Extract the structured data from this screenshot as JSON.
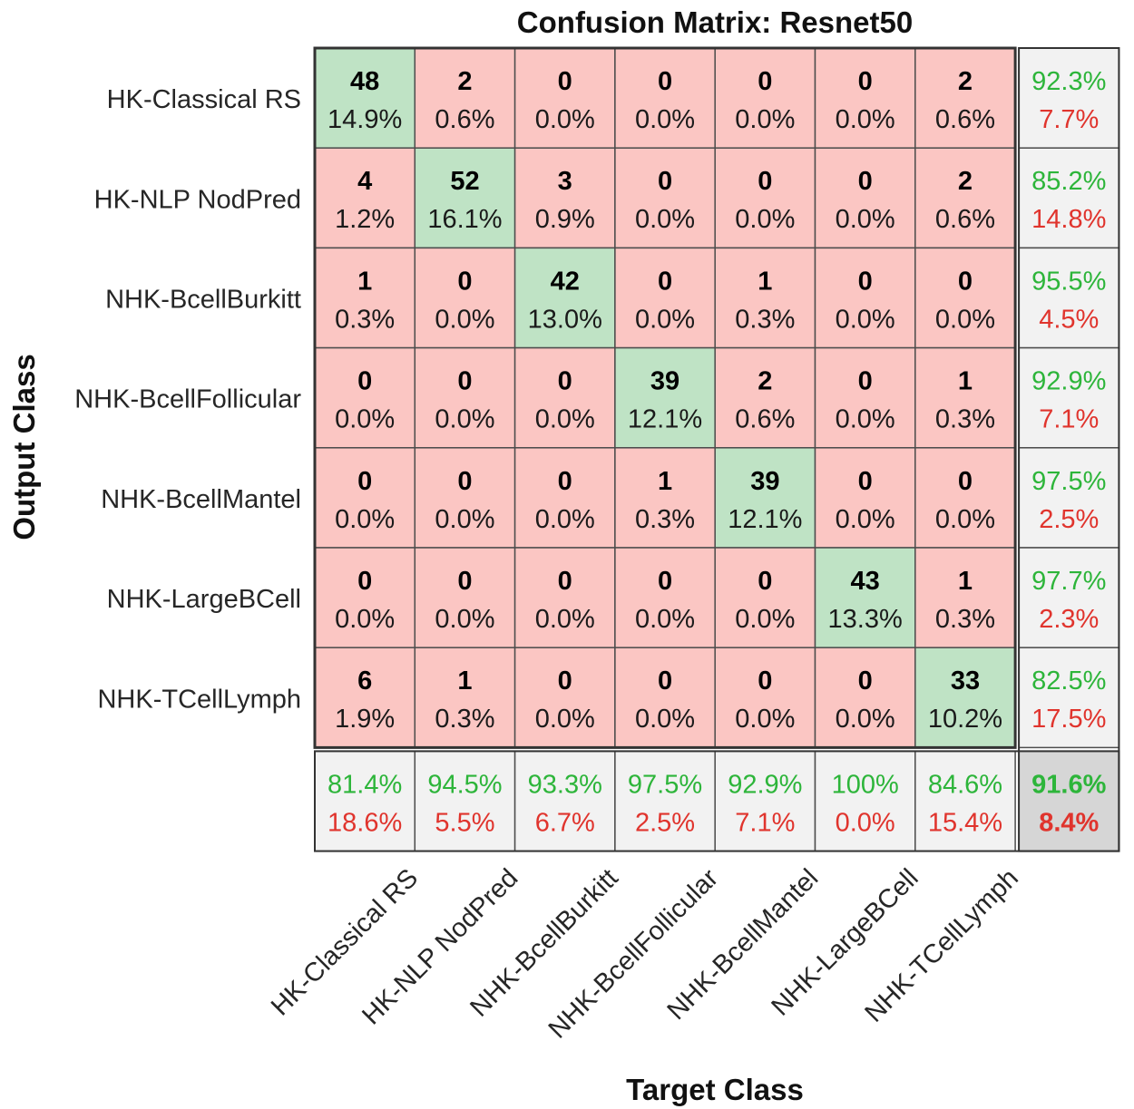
{
  "chart_data": {
    "type": "heatmap",
    "title": "Confusion Matrix: Resnet50",
    "xlabel": "Target Class",
    "ylabel": "Output Class",
    "classes": [
      "HK-Classical RS",
      "HK-NLP NodPred",
      "NHK-BcellBurkitt",
      "NHK-BcellFollicular",
      "NHK-BcellMantel",
      "NHK-LargeBCell",
      "NHK-TCellLymph"
    ],
    "counts": [
      [
        48,
        2,
        0,
        0,
        0,
        0,
        2
      ],
      [
        4,
        52,
        3,
        0,
        0,
        0,
        2
      ],
      [
        1,
        0,
        42,
        0,
        1,
        0,
        0
      ],
      [
        0,
        0,
        0,
        39,
        2,
        0,
        1
      ],
      [
        0,
        0,
        0,
        1,
        39,
        0,
        0
      ],
      [
        0,
        0,
        0,
        0,
        0,
        43,
        1
      ],
      [
        6,
        1,
        0,
        0,
        0,
        0,
        33
      ]
    ],
    "percents": [
      [
        "14.9%",
        "0.6%",
        "0.0%",
        "0.0%",
        "0.0%",
        "0.0%",
        "0.6%"
      ],
      [
        "1.2%",
        "16.1%",
        "0.9%",
        "0.0%",
        "0.0%",
        "0.0%",
        "0.6%"
      ],
      [
        "0.3%",
        "0.0%",
        "13.0%",
        "0.0%",
        "0.3%",
        "0.0%",
        "0.0%"
      ],
      [
        "0.0%",
        "0.0%",
        "0.0%",
        "12.1%",
        "0.6%",
        "0.0%",
        "0.3%"
      ],
      [
        "0.0%",
        "0.0%",
        "0.0%",
        "0.3%",
        "12.1%",
        "0.0%",
        "0.0%"
      ],
      [
        "0.0%",
        "0.0%",
        "0.0%",
        "0.0%",
        "0.0%",
        "13.3%",
        "0.3%"
      ],
      [
        "1.9%",
        "0.3%",
        "0.0%",
        "0.0%",
        "0.0%",
        "0.0%",
        "10.2%"
      ]
    ],
    "row_summary": [
      [
        "92.3%",
        "7.7%"
      ],
      [
        "85.2%",
        "14.8%"
      ],
      [
        "95.5%",
        "4.5%"
      ],
      [
        "92.9%",
        "7.1%"
      ],
      [
        "97.5%",
        "2.5%"
      ],
      [
        "97.7%",
        "2.3%"
      ],
      [
        "82.5%",
        "17.5%"
      ]
    ],
    "col_summary": [
      [
        "81.4%",
        "18.6%"
      ],
      [
        "94.5%",
        "5.5%"
      ],
      [
        "93.3%",
        "6.7%"
      ],
      [
        "97.5%",
        "2.5%"
      ],
      [
        "92.9%",
        "7.1%"
      ],
      [
        "100%",
        "0.0%"
      ],
      [
        "84.6%",
        "15.4%"
      ]
    ],
    "overall": [
      "91.6%",
      "8.4%"
    ],
    "colors": {
      "correct_cell": "#bfe3c5",
      "error_cell": "#fbc6c3",
      "summary_cell": "#f2f2f2",
      "overall_cell": "#d6d6d6",
      "good_text": "#2db53a",
      "bad_text": "#e0342d",
      "count_text": "#000000"
    }
  }
}
